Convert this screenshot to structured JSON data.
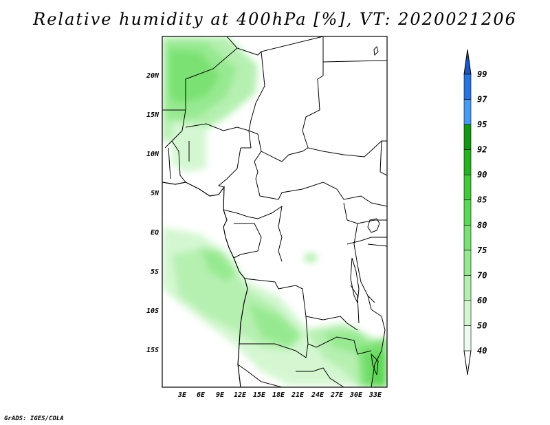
{
  "title": "Relative humidity at 400hPa [%], VT: 2020021206",
  "credit": "GrADS: IGES/COLA",
  "map": {
    "lon_ticks": [
      "3E",
      "6E",
      "9E",
      "12E",
      "15E",
      "18E",
      "21E",
      "24E",
      "27E",
      "30E",
      "33E"
    ],
    "lat_ticks": [
      "20N",
      "15N",
      "10N",
      "5N",
      "EQ",
      "5S",
      "10S",
      "15S"
    ]
  },
  "colorbar": {
    "levels": [
      "40",
      "50",
      "60",
      "70",
      "75",
      "80",
      "85",
      "90",
      "92",
      "95",
      "97",
      "99"
    ],
    "colors": [
      "#ffffff",
      "#eefced",
      "#d4f7d1",
      "#b6f0b1",
      "#97e991",
      "#7ae172",
      "#5fd756",
      "#43c93b",
      "#28b122",
      "#169615",
      "#4a9af0",
      "#2b74de",
      "#1d56c4"
    ]
  }
}
